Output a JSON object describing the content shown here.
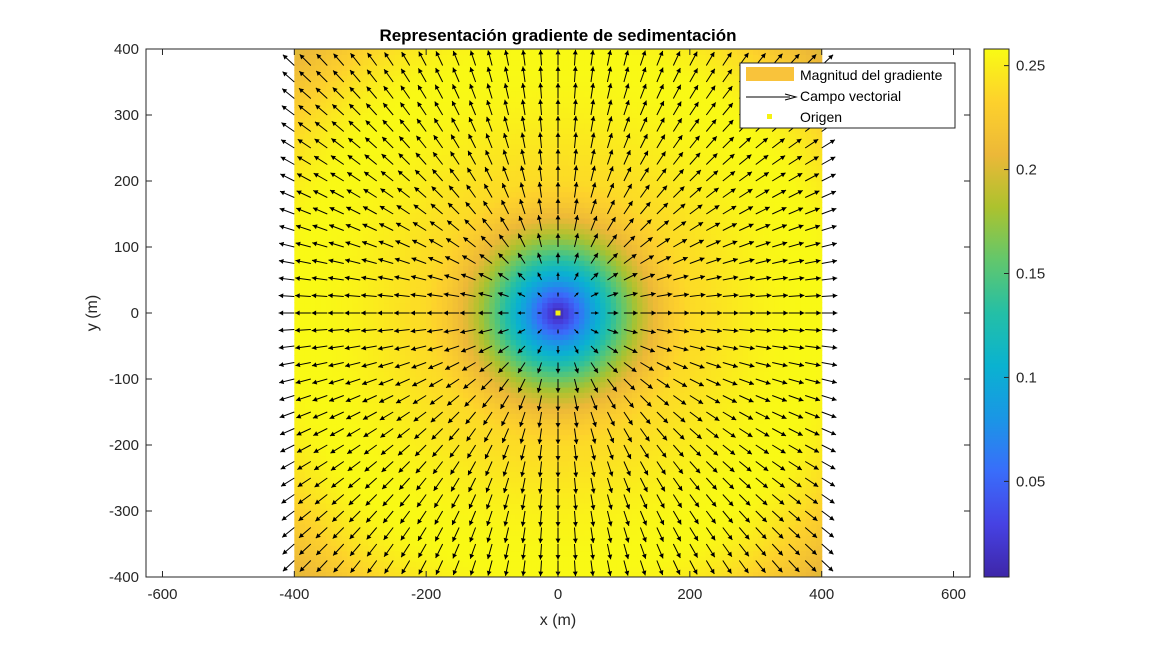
{
  "chart_data": {
    "type": "heatmap",
    "title": "Representación gradiente de sedimentación",
    "xlabel": "x (m)",
    "ylabel": "y (m)",
    "xlim": [
      -625,
      625
    ],
    "ylim": [
      -400,
      400
    ],
    "x_ticks": [
      -600,
      -400,
      -200,
      0,
      200,
      400,
      600
    ],
    "y_ticks": [
      -400,
      -300,
      -200,
      -100,
      0,
      100,
      200,
      300,
      400
    ],
    "x_tick_labels": [
      "-600",
      "-400",
      "-200",
      "0",
      "200",
      "400",
      "600"
    ],
    "y_tick_labels": [
      "-400",
      "-300",
      "-200",
      "-100",
      "0",
      "100",
      "200",
      "300",
      "400"
    ],
    "data_extent": {
      "x": [
        -400,
        400
      ],
      "y": [
        -400,
        400
      ]
    },
    "magnitude_peak_radius": 220,
    "magnitude_peak_value": 0.24,
    "magnitude_corner_value": 0.2,
    "arrow_spacing": 25,
    "origin": {
      "x": 0,
      "y": 0
    },
    "colorbar": {
      "range": [
        0.004,
        0.258
      ],
      "ticks": [
        0.05,
        0.1,
        0.15,
        0.2,
        0.25
      ],
      "tick_labels": [
        "0.05",
        "0.1",
        "0.15",
        "0.2",
        "0.25"
      ],
      "colormap": "parula"
    },
    "legend": {
      "location": "top-right",
      "entries": [
        "Magnitud del gradiente",
        "Campo vectorial",
        "Origen"
      ]
    },
    "colors": {
      "magnitude_swatch": "#f9c33b",
      "arrows": "#000000",
      "origin_marker": "#f5f213",
      "axes": "#262626"
    }
  }
}
